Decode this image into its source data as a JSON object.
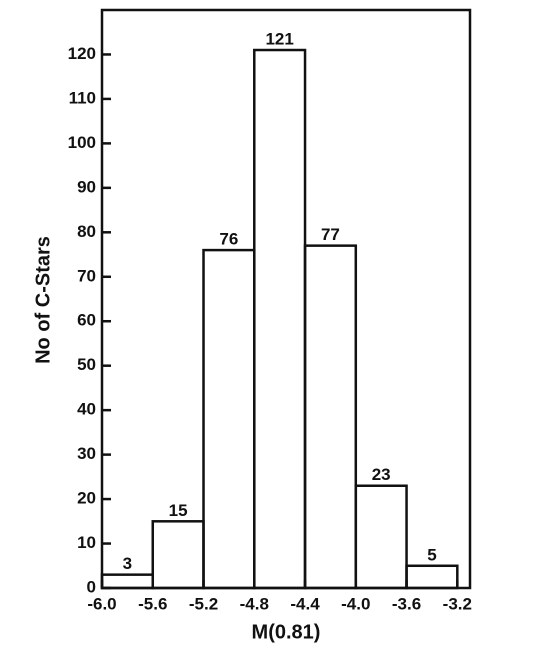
{
  "chart_data": {
    "type": "histogram",
    "x_label": "M(0.81)",
    "y_label": "No of C-Stars",
    "bins": [
      -6.0,
      -5.6,
      -5.2,
      -4.8,
      -4.4,
      -4.0,
      -3.6,
      -3.2
    ],
    "values": [
      3,
      15,
      76,
      121,
      77,
      23,
      5
    ],
    "color": "#111111",
    "xlim": [
      -6.0,
      -3.1
    ],
    "xticks": [
      {
        "value": -6.0,
        "label": "-6.0"
      },
      {
        "value": -5.6,
        "label": "-5.6"
      },
      {
        "value": -5.2,
        "label": "-5.2"
      },
      {
        "value": -4.8,
        "label": "-4.8"
      },
      {
        "value": -4.4,
        "label": "-4.4"
      },
      {
        "value": -4.0,
        "label": "-4.0"
      },
      {
        "value": -3.6,
        "label": "-3.6"
      },
      {
        "value": -3.2,
        "label": "-3.2"
      }
    ],
    "ylim": [
      0,
      130
    ],
    "yticks": [
      0,
      10,
      20,
      30,
      40,
      50,
      60,
      70,
      80,
      90,
      100,
      110,
      120
    ]
  }
}
